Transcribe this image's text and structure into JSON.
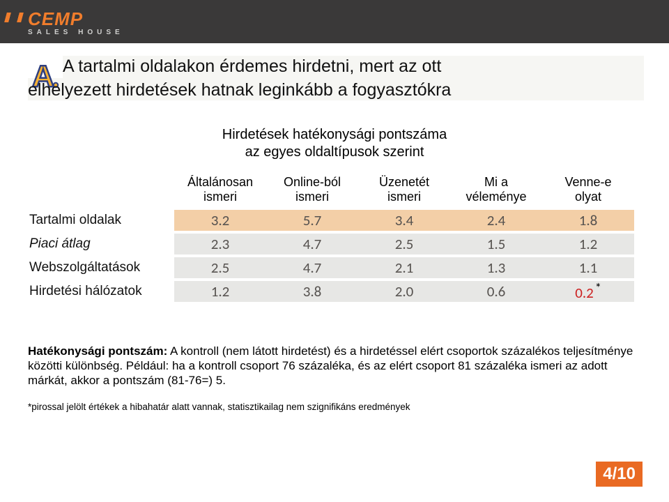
{
  "brand": {
    "name": "CEMP",
    "tagline": "SALES HOUSE"
  },
  "badge_letter": "A.",
  "title_line1": "A tartalmi oldalakon érdemes hirdetni, mert az ott",
  "title_line2": "elhelyezett hirdetések hatnak leginkább a fogyasztókra",
  "chart_title_line1": "Hirdetések hatékonysági pontszáma",
  "chart_title_line2": "az egyes oldaltípusok szerint",
  "columns": [
    {
      "l1": "Általánosan",
      "l2": "ismeri"
    },
    {
      "l1": "Online-ból",
      "l2": "ismeri"
    },
    {
      "l1": "Üzenetét",
      "l2": "ismeri"
    },
    {
      "l1": "Mi a",
      "l2": "véleménye"
    },
    {
      "l1": "Venne-e",
      "l2": "olyat"
    }
  ],
  "rows": [
    {
      "label": "Tartalmi oldalak",
      "italic": false,
      "highlight": true,
      "cells": [
        "3.2",
        "5.7",
        "3.4",
        "2.4",
        "1.8"
      ]
    },
    {
      "label": "Piaci átlag",
      "italic": true,
      "highlight": false,
      "cells": [
        "2.3",
        "4.7",
        "2.5",
        "1.5",
        "1.2"
      ]
    },
    {
      "label": "Webszolgáltatások",
      "italic": false,
      "highlight": false,
      "cells": [
        "2.5",
        "4.7",
        "2.1",
        "1.3",
        "1.1"
      ]
    },
    {
      "label": "Hirdetési hálózatok",
      "italic": false,
      "highlight": false,
      "cells": [
        "1.2",
        "3.8",
        "2.0",
        "0.6",
        "0.2"
      ],
      "last_red_star": true
    }
  ],
  "colors": {
    "header_bg": "#3a3939",
    "brand_orange": "#f07d2c",
    "pagenum_bg": "#e96a23",
    "row_highlight": "#f3cfa7",
    "row_alt": "#e7e7e5",
    "cell_text": "#56524f",
    "red": "#cc1f1f",
    "title_bg": "#f6f6f3",
    "badge_fill": "#f9b233",
    "badge_stroke": "#2e3f80"
  },
  "cell_font_family": "Gill Sans, 'Gill Sans MT', Calibri, sans-serif",
  "footnote": {
    "lead": "Hatékonysági pontszám:",
    "body": " A kontroll (nem látott hirdetést) és a hirdetéssel elért csoportok százalékos teljesítménye közötti különbség. Például: ha a kontroll csoport 76 százaléka, és az elért csoport 81 százaléka ismeri az adott márkát, akkor a pontszám (81-76=) 5."
  },
  "footnote2": "*pirossal jelölt értékek a hibahatár alatt vannak, statisztikailag nem szignifikáns eredmények",
  "page_number": "4/10"
}
